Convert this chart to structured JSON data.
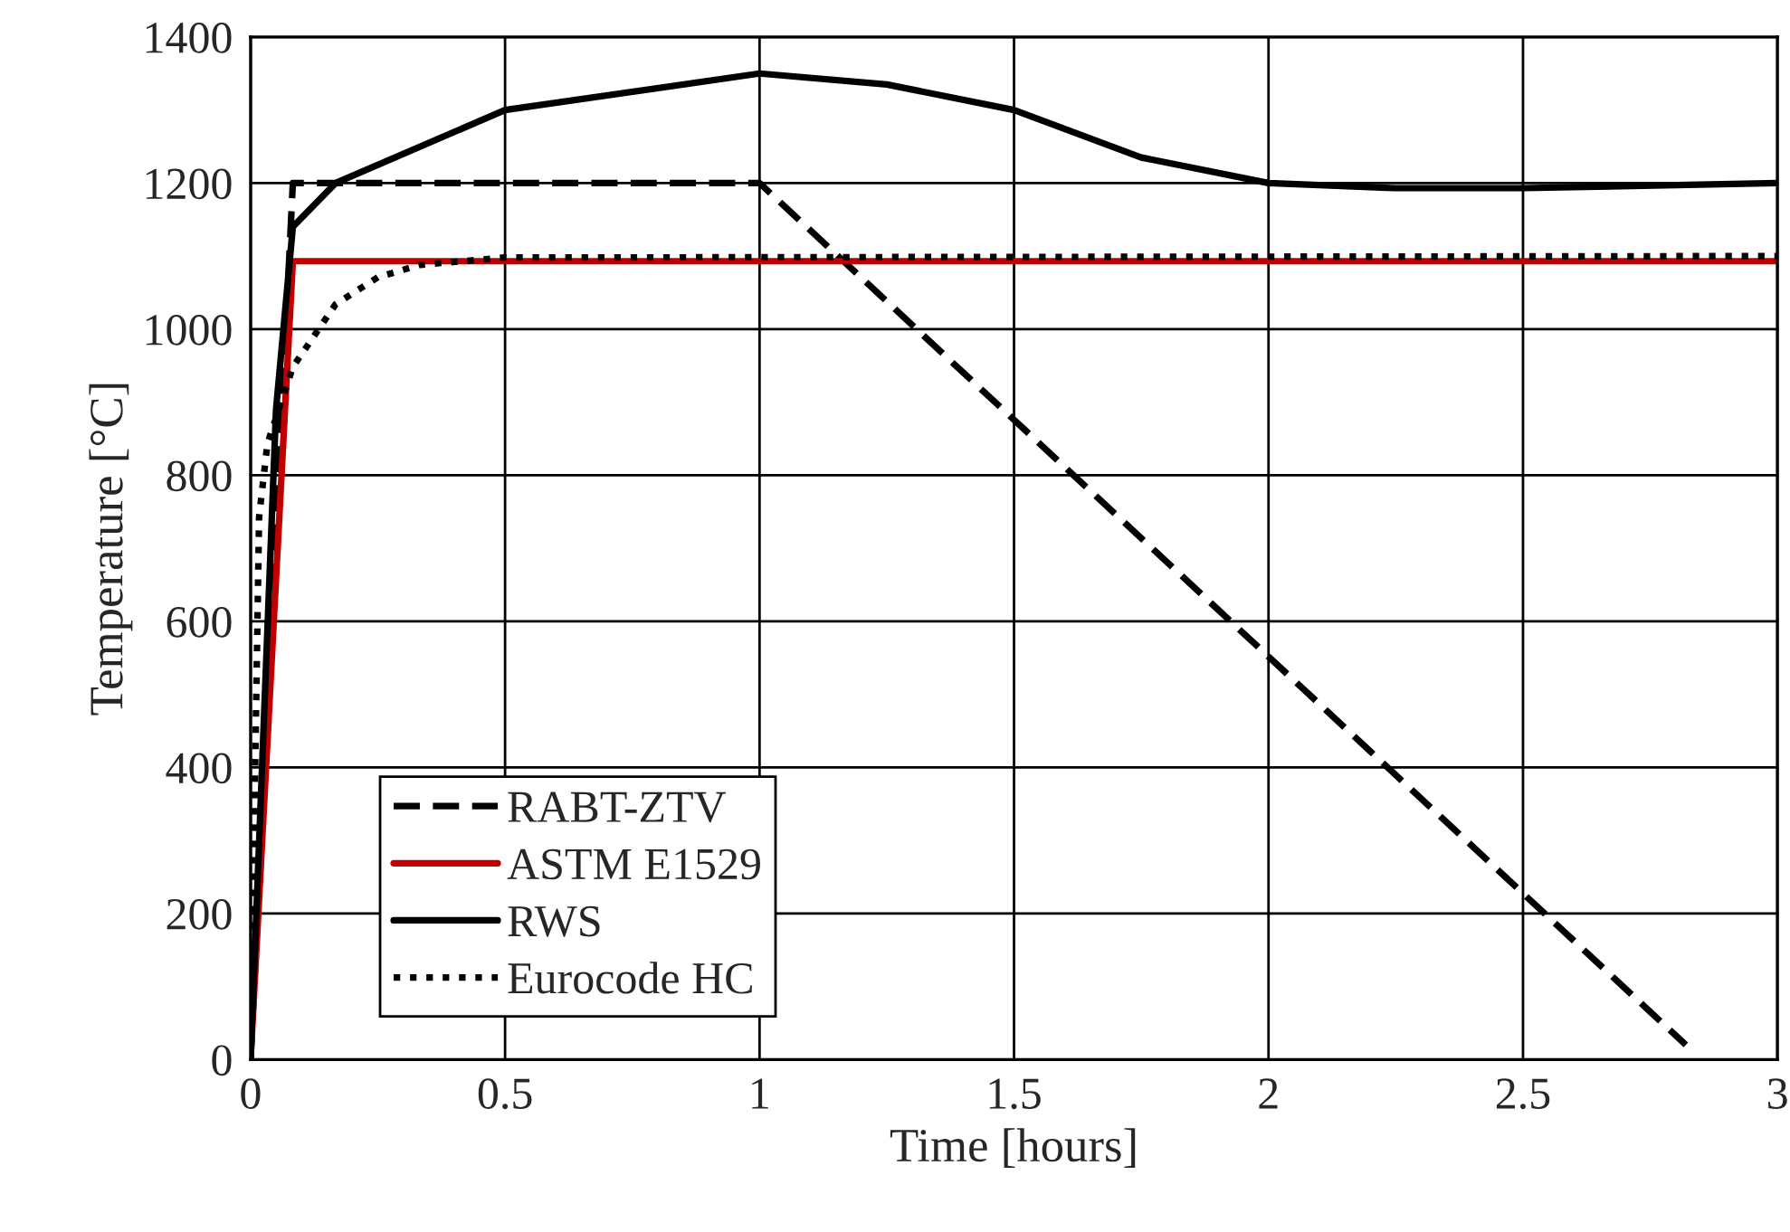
{
  "chart_data": {
    "type": "line",
    "xlabel": "Time [hours]",
    "ylabel": "Temperature [°C]",
    "xlim": [
      0,
      3
    ],
    "xticks": [
      0,
      0.5,
      1,
      1.5,
      2,
      2.5,
      3
    ],
    "ylim": [
      0,
      1400
    ],
    "yticks": [
      0,
      200,
      400,
      600,
      800,
      1000,
      1200,
      1400
    ],
    "grid": true,
    "legend": "bottom left",
    "series": [
      {
        "name": "RABT-ZTV",
        "color": "#000000",
        "line_style": "dashed",
        "x": [
          0,
          0.083,
          1,
          2.82
        ],
        "values": [
          0,
          1200,
          1200,
          20
        ]
      },
      {
        "name": "ASTM E1529",
        "color": "#c00000",
        "line_style": "solid",
        "x": [
          0,
          0.083,
          3
        ],
        "values": [
          0,
          1093,
          1093
        ]
      },
      {
        "name": "RWS",
        "color": "#000000",
        "line_style": "solid",
        "x": [
          0,
          0.05,
          0.083,
          0.167,
          0.5,
          1,
          1.25,
          1.5,
          1.75,
          2,
          2.25,
          2.5,
          3
        ],
        "values": [
          0,
          890,
          1140,
          1200,
          1300,
          1350,
          1335,
          1300,
          1235,
          1200,
          1193,
          1193,
          1200
        ]
      },
      {
        "name": "Eurocode HC",
        "color": "#000000",
        "line_style": "dotted",
        "x": [
          0,
          0.0167,
          0.033,
          0.083,
          0.167,
          0.25,
          0.333,
          0.5,
          3
        ],
        "values": [
          0,
          743,
          843,
          948,
          1034,
          1071,
          1088,
          1098,
          1100
        ]
      }
    ]
  }
}
